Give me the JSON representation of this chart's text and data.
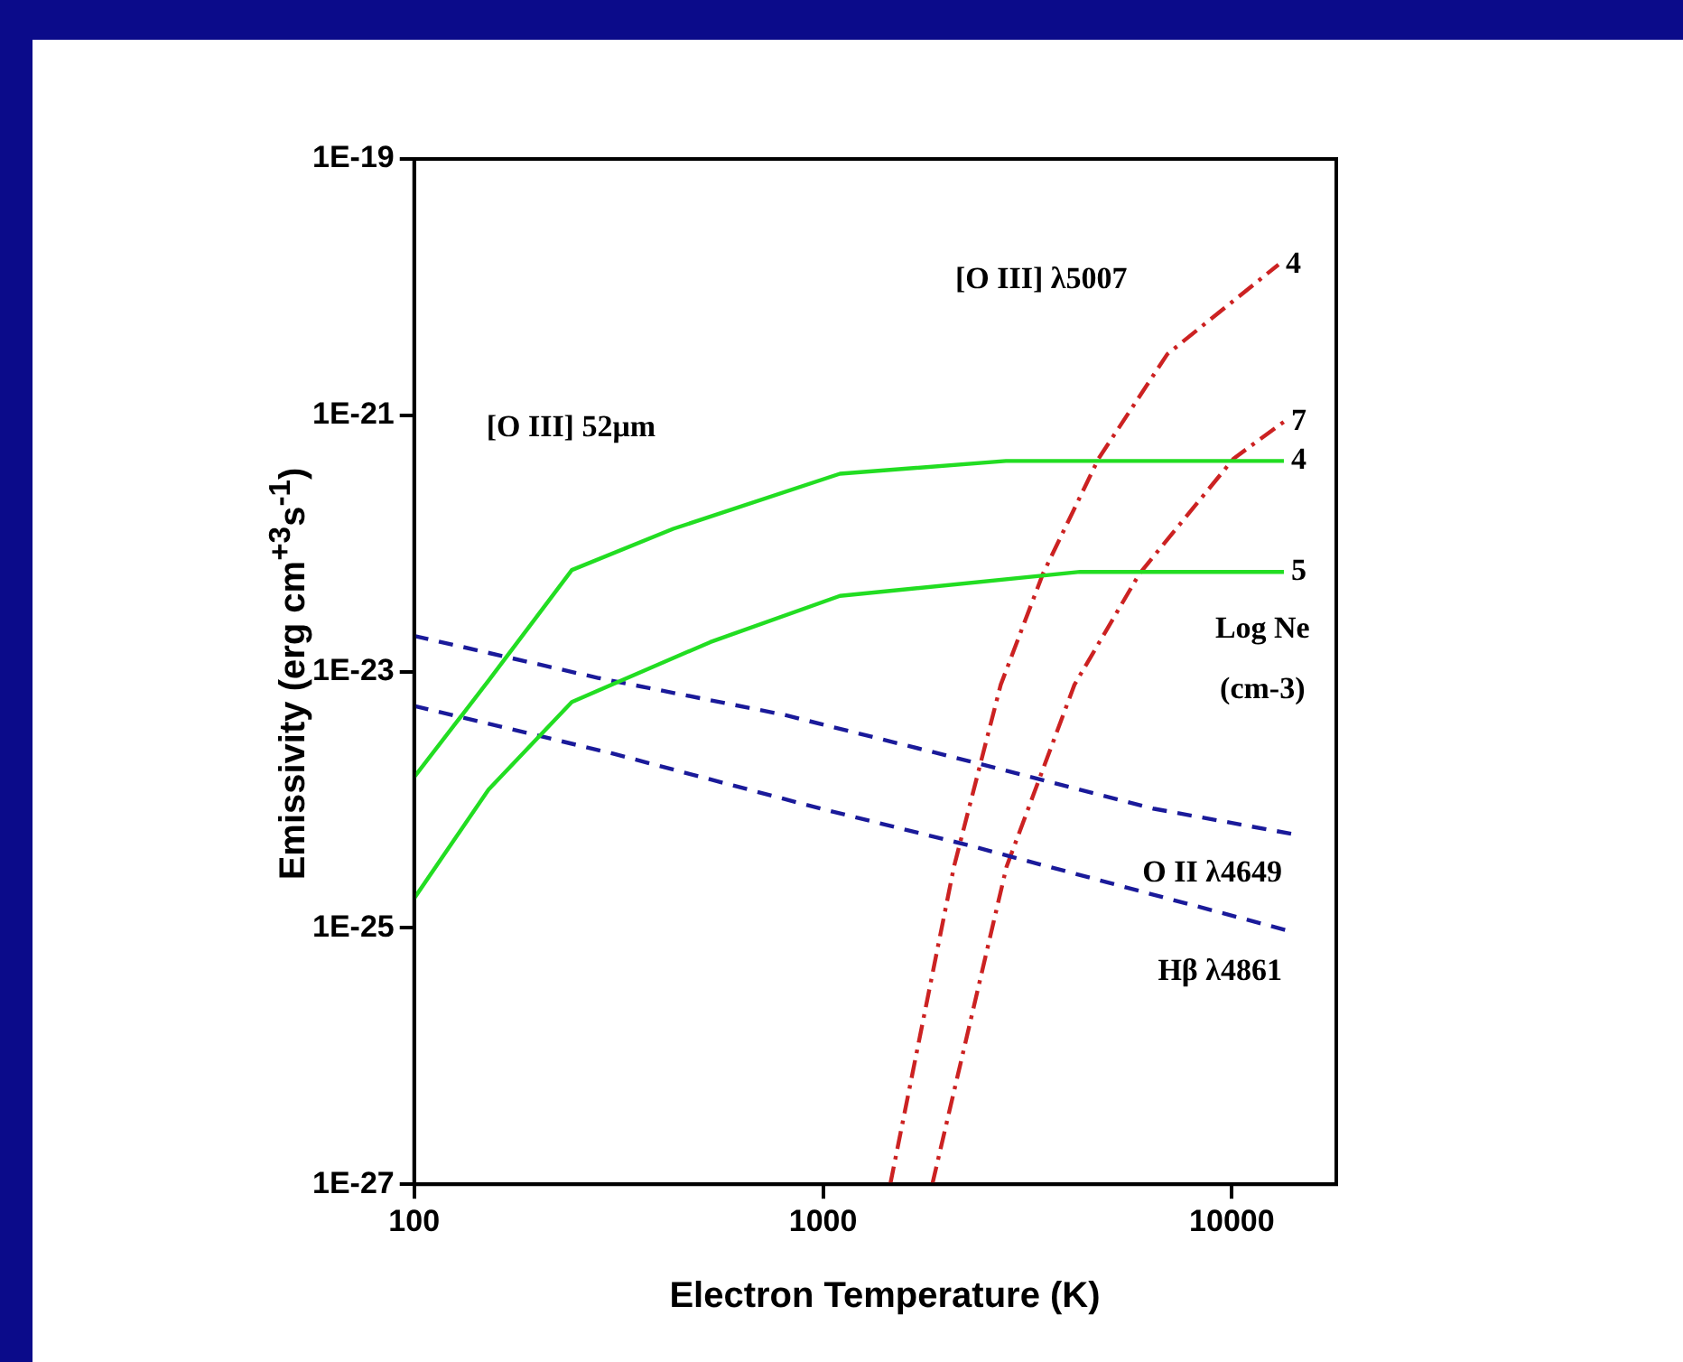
{
  "chart_data": {
    "type": "line",
    "xlabel": "Electron Temperature  (K)",
    "ylabel": "Emissivity  (erg cm$^{+3}$s$^{-1}$)",
    "log": "xy",
    "xlim": [
      100,
      18000
    ],
    "xticks": [
      100,
      1000,
      10000
    ],
    "ylim": [
      1e-27,
      1e-19
    ],
    "yticks": [
      {
        "value": 1e-19,
        "label": "1E-19"
      },
      {
        "value": 1e-21,
        "label": "1E-21"
      },
      {
        "value": 1e-23,
        "label": "1E-23"
      },
      {
        "value": 1e-25,
        "label": "1E-25"
      },
      {
        "value": 1e-27,
        "label": "1E-27"
      }
    ],
    "grid": false,
    "legend": false,
    "marker": "none",
    "series": [
      {
        "name": "4",
        "color": "#22dd22",
        "line_style": "solid",
        "x": [
          100,
          152,
          243,
          430,
          1100,
          2800,
          13400
        ],
        "values": [
          1.5e-24,
          8.5e-24,
          6.2e-23,
          1.3e-22,
          3.5e-22,
          4.4e-22,
          4.4e-22
        ]
      },
      {
        "name": "5",
        "color": "#22dd22",
        "line_style": "solid",
        "x": [
          100,
          152,
          243,
          530,
          1100,
          4250,
          13400
        ],
        "values": [
          1.7e-25,
          1.2e-24,
          5.8e-24,
          1.7e-23,
          3.9e-23,
          6e-23,
          6e-23
        ]
      },
      {
        "name": "O II λ4649",
        "color": "#1a1a9a",
        "line_style": "dashed",
        "x": [
          100,
          283,
          803,
          2280,
          6460,
          14100
        ],
        "values": [
          1.9e-23,
          8.9e-24,
          4.6e-24,
          2e-24,
          8.5e-25,
          5.4e-25
        ]
      },
      {
        "name": "Hβ λ4861",
        "color": "#1a1a9a",
        "line_style": "dashed",
        "x": [
          100,
          305,
          990,
          2280,
          6950,
          14100
        ],
        "values": [
          5.4e-24,
          2.3e-24,
          8.5e-25,
          4.4e-25,
          1.7e-25,
          9.3e-26
        ]
      },
      {
        "name": "4",
        "color": "#cc2222",
        "line_style": "dashdot",
        "x": [
          1460,
          2090,
          2720,
          3450,
          4720,
          6950,
          13000
        ],
        "values": [
          1e-27,
          3e-25,
          7.9e-24,
          5.8e-23,
          4.6e-22,
          3e-21,
          1.5e-20
        ]
      },
      {
        "name": "7",
        "color": "#cc2222",
        "line_style": "dashdot",
        "x": [
          1850,
          2810,
          4120,
          5940,
          10100,
          13400
        ],
        "values": [
          1e-27,
          3e-25,
          7.9e-24,
          5.8e-23,
          4.6e-22,
          8.9e-22
        ]
      }
    ],
    "annotations": [
      "[O III] 52μm",
      "[O III] λ5007",
      "Log Ne",
      "(cm-3)"
    ]
  }
}
